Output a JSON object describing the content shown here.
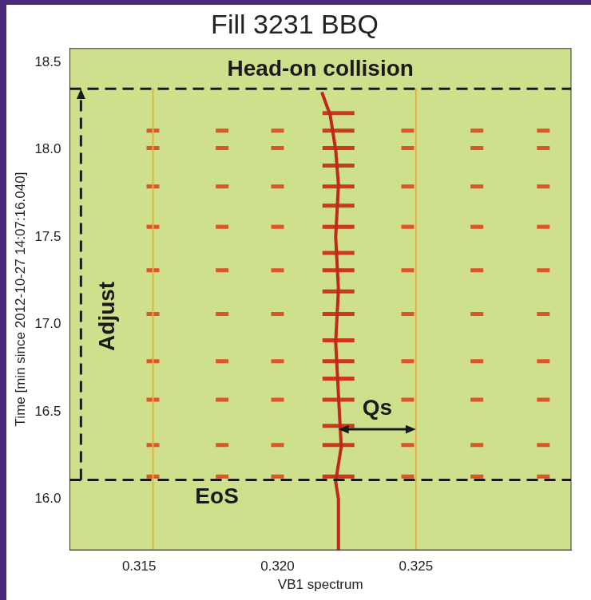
{
  "chart_data": {
    "type": "scatter",
    "title": "Fill 3231 BBQ",
    "x_label": "VB1 spectrum",
    "y_label": "Time [min since 2012-10-27 14:07:16.040]",
    "xlim": [
      0.3125,
      0.3306
    ],
    "xticks": [
      0.315,
      {
        "value": 0.32,
        "label": "0.320"
      },
      0.325
    ],
    "ylim": [
      15.71,
      18.58
    ],
    "yticks": [
      {
        "value": 16,
        "label": "16.0"
      },
      16.5,
      {
        "value": 17,
        "label": "17.0"
      },
      17.5,
      {
        "value": 18,
        "label": "18.0"
      },
      18.5
    ],
    "grid": false,
    "series": [
      {
        "type": "line",
        "color": "#e8b040",
        "marker": "none",
        "line_style": "solid",
        "x": [
          0.3155,
          0.3155,
          null,
          0.325,
          0.325
        ],
        "values": [
          15.71,
          18.35,
          null,
          15.71,
          18.35
        ]
      },
      {
        "type": "line",
        "color": "#c0281c",
        "marker": "none",
        "line_style": "solid",
        "x": [
          0.3222,
          0.3222,
          0.3221,
          0.3223,
          0.3222,
          0.3221,
          0.3222,
          0.3221,
          0.3222,
          0.3221,
          0.3219,
          0.3216
        ],
        "values": [
          15.71,
          16.0,
          16.1,
          16.3,
          16.6,
          16.9,
          17.2,
          17.5,
          17.8,
          18.0,
          18.2,
          18.33
        ]
      },
      {
        "type": "scatter",
        "color": "#cc3a1e",
        "marker": "line",
        "x": [
          0.3222,
          0.3222,
          0.3222,
          0.3222,
          0.3222,
          0.3222,
          0.3222,
          0.3222,
          0.3222,
          0.3222,
          0.3222,
          0.3222,
          0.3222,
          0.3222,
          0.3222,
          0.3222,
          0.3222,
          0.3222
        ],
        "values": [
          16.13,
          16.31,
          16.42,
          16.57,
          16.69,
          16.79,
          16.91,
          17.06,
          17.19,
          17.31,
          17.41,
          17.56,
          17.68,
          17.79,
          17.91,
          18.01,
          18.11,
          18.21
        ]
      },
      {
        "type": "scatter",
        "color": "#dd5528",
        "marker": "line",
        "x": [
          0.3155,
          0.318,
          0.32,
          0.3247,
          0.3272,
          0.3296,
          0.3155,
          0.318,
          0.32,
          0.3247,
          0.3272,
          0.3296,
          0.3155,
          0.318,
          0.32,
          0.3247,
          0.3272,
          0.3296,
          0.3155,
          0.318,
          0.32,
          0.3247,
          0.3272,
          0.3296,
          0.3155,
          0.318,
          0.32,
          0.3247,
          0.3272,
          0.3296,
          0.3155,
          0.318,
          0.32,
          0.3247,
          0.3272,
          0.3296,
          0.3155,
          0.318,
          0.32,
          0.3247,
          0.3272,
          0.3296,
          0.3155,
          0.318,
          0.32,
          0.3247,
          0.3272,
          0.3296,
          0.3155,
          0.318,
          0.32,
          0.3247,
          0.3272,
          0.3296,
          0.3155,
          0.318,
          0.32,
          0.3247,
          0.3272,
          0.3296
        ],
        "values": [
          16.13,
          16.13,
          16.13,
          16.13,
          16.13,
          16.13,
          16.31,
          16.31,
          16.31,
          16.31,
          16.31,
          16.31,
          16.57,
          16.57,
          16.57,
          16.57,
          16.57,
          16.57,
          16.79,
          16.79,
          16.79,
          16.79,
          16.79,
          16.79,
          17.06,
          17.06,
          17.06,
          17.06,
          17.06,
          17.06,
          17.31,
          17.31,
          17.31,
          17.31,
          17.31,
          17.31,
          17.56,
          17.56,
          17.56,
          17.56,
          17.56,
          17.56,
          17.79,
          17.79,
          17.79,
          17.79,
          17.79,
          17.79,
          18.01,
          18.01,
          18.01,
          18.01,
          18.01,
          18.01,
          18.11,
          18.11,
          18.11,
          18.11,
          18.11,
          18.11
        ]
      }
    ],
    "lines": [
      {
        "text": "Head-on collision",
        "y": 18.35
      },
      {
        "text": "EoS",
        "y": 16.11
      }
    ],
    "arrows": [
      {
        "text": "Adjust",
        "x": 0.3129,
        "y": [
          16.11,
          18.35
        ]
      },
      {
        "text": "Qs",
        "y": 16.4,
        "x": [
          0.3222,
          0.325
        ]
      }
    ]
  }
}
